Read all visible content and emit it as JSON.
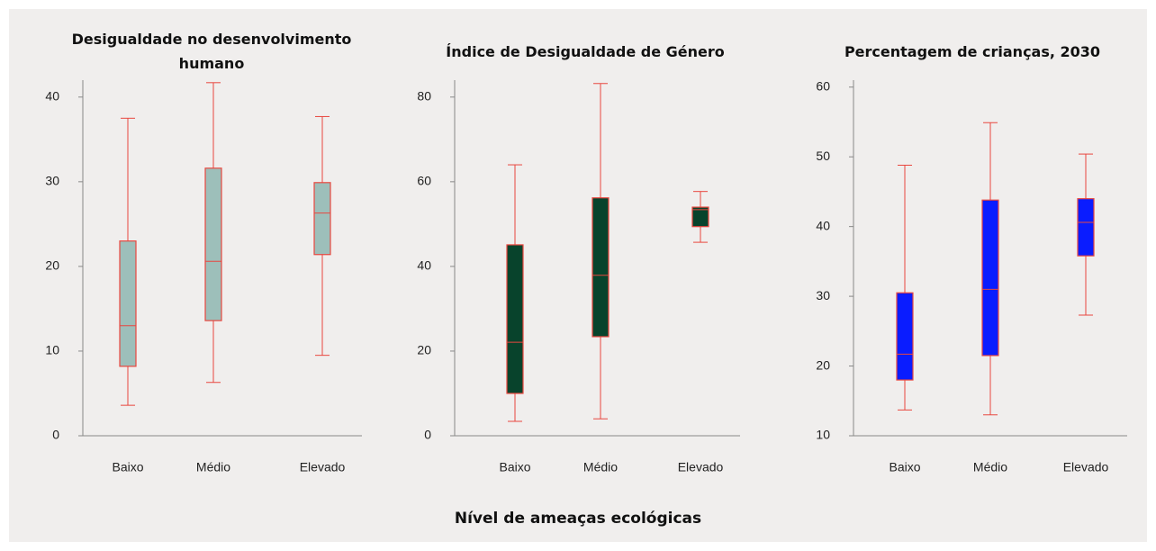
{
  "chart_data": [
    {
      "type": "box",
      "title": "Desigualdade no desenvolvimento humano",
      "categories": [
        "Baixo",
        "Médio",
        "Elevado"
      ],
      "min": [
        3.6,
        6.3,
        9.5
      ],
      "q1": [
        8.2,
        13.6,
        21.4
      ],
      "median": [
        13,
        20.6,
        26.3
      ],
      "q3": [
        23,
        31.6,
        29.9
      ],
      "max": [
        37.5,
        41.7,
        37.7
      ],
      "color": "#9dbfba",
      "edge_color": "#e8473f",
      "ylim": [
        0,
        42
      ],
      "yticks": [
        0,
        10,
        20,
        30,
        40
      ]
    },
    {
      "type": "box",
      "title": "Índice de Desigualdade de Género",
      "categories": [
        "Baixo",
        "Médio",
        "Elevado"
      ],
      "min": [
        3.4,
        4,
        45.7
      ],
      "q1": [
        10,
        23.4,
        49.4
      ],
      "median": [
        22.1,
        37.9,
        53.4
      ],
      "q3": [
        45.1,
        56.2,
        54
      ],
      "max": [
        64,
        83.2,
        57.7
      ],
      "color": "#08432c",
      "edge_color": "#e8473f",
      "ylim": [
        0,
        84
      ],
      "yticks": [
        0,
        20,
        40,
        60,
        80
      ]
    },
    {
      "type": "box",
      "title": "Percentagem de crianças, 2030",
      "categories": [
        "Baixo",
        "Médio",
        "Elevado"
      ],
      "min": [
        13.7,
        13,
        27.3
      ],
      "q1": [
        18,
        21.5,
        35.8
      ],
      "median": [
        21.7,
        31,
        40.6
      ],
      "q3": [
        30.5,
        43.8,
        44
      ],
      "max": [
        48.8,
        54.9,
        50.4
      ],
      "color": "#0a1cff",
      "edge_color": "#e8473f",
      "ylim": [
        10,
        61
      ],
      "yticks": [
        10,
        20,
        30,
        40,
        50,
        60
      ]
    }
  ],
  "x_label": "Nível de ameaças ecológicas"
}
